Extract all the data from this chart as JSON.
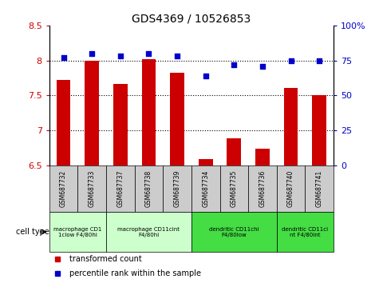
{
  "title": "GDS4369 / 10526853",
  "samples": [
    "GSM687732",
    "GSM687733",
    "GSM687737",
    "GSM687738",
    "GSM687739",
    "GSM687734",
    "GSM687735",
    "GSM687736",
    "GSM687740",
    "GSM687741"
  ],
  "transformed_count": [
    7.72,
    7.99,
    7.66,
    8.02,
    7.82,
    6.59,
    6.89,
    6.74,
    7.61,
    7.5
  ],
  "percentile_rank": [
    77,
    80,
    78,
    80,
    78,
    64,
    72,
    71,
    75,
    75
  ],
  "ylim_left": [
    6.5,
    8.5
  ],
  "ylim_right": [
    0,
    100
  ],
  "yticks_left": [
    6.5,
    7.0,
    7.5,
    8.0,
    8.5
  ],
  "yticks_right": [
    0,
    25,
    50,
    75,
    100
  ],
  "bar_color": "#cc0000",
  "dot_color": "#0000cc",
  "cell_type_groups": [
    {
      "label": "macrophage CD1\n1clow F4/80hi",
      "start": 0,
      "end": 2,
      "color": "#ccffcc"
    },
    {
      "label": "macrophage CD11cint\nF4/80hi",
      "start": 2,
      "end": 5,
      "color": "#ccffcc"
    },
    {
      "label": "dendritic CD11chi\nF4/80low",
      "start": 5,
      "end": 8,
      "color": "#44dd44"
    },
    {
      "label": "dendritic CD11ci\nnt F4/80int",
      "start": 8,
      "end": 10,
      "color": "#44dd44"
    }
  ],
  "legend_bar_label": "transformed count",
  "legend_dot_label": "percentile rank within the sample",
  "left_tick_color": "#cc0000",
  "right_tick_color": "#0000cc",
  "cell_type_label": "cell type",
  "xtick_bg_color": "#cccccc",
  "bar_width": 0.5
}
